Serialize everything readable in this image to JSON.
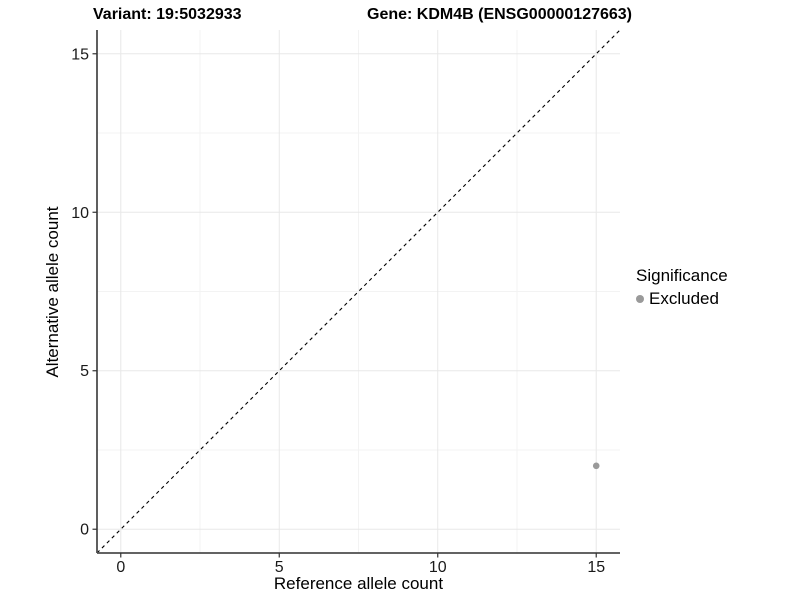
{
  "titles": {
    "variant": "Variant: 19:5032933",
    "gene": "Gene: KDM4B (ENSG00000127663)"
  },
  "legend": {
    "title": "Significance",
    "items": [
      {
        "label": "Excluded",
        "color": "#9a9a9a"
      }
    ]
  },
  "chart_data": {
    "type": "scatter",
    "title_left": "Variant: 19:5032933",
    "title_right": "Gene: KDM4B (ENSG00000127663)",
    "xlabel": "Reference allele count",
    "ylabel": "Alternative allele count",
    "xlim": [
      -0.75,
      15.75
    ],
    "ylim": [
      -0.75,
      15.75
    ],
    "x_ticks": [
      0,
      5,
      10,
      15
    ],
    "y_ticks": [
      0,
      5,
      10,
      15
    ],
    "x_minor_ticks": [
      2.5,
      7.5,
      12.5
    ],
    "y_minor_ticks": [
      2.5,
      7.5,
      12.5
    ],
    "grid": "major+minor",
    "legend_position": "right",
    "legend_title": "Significance",
    "reference_line": {
      "type": "identity y=x",
      "style": "dashed",
      "color": "#000000"
    },
    "series": [
      {
        "name": "Excluded",
        "color": "#9a9a9a",
        "marker": "circle",
        "points": [
          [
            15,
            2
          ]
        ]
      }
    ]
  },
  "colors": {
    "background": "#ffffff",
    "grid_major": "#e8e8e8",
    "grid_minor": "#f3f3f3",
    "axis_line": "#4d4d4d",
    "tick_mark": "#333333",
    "tick_label": "#1a1a1a",
    "point": "#9a9a9a"
  }
}
